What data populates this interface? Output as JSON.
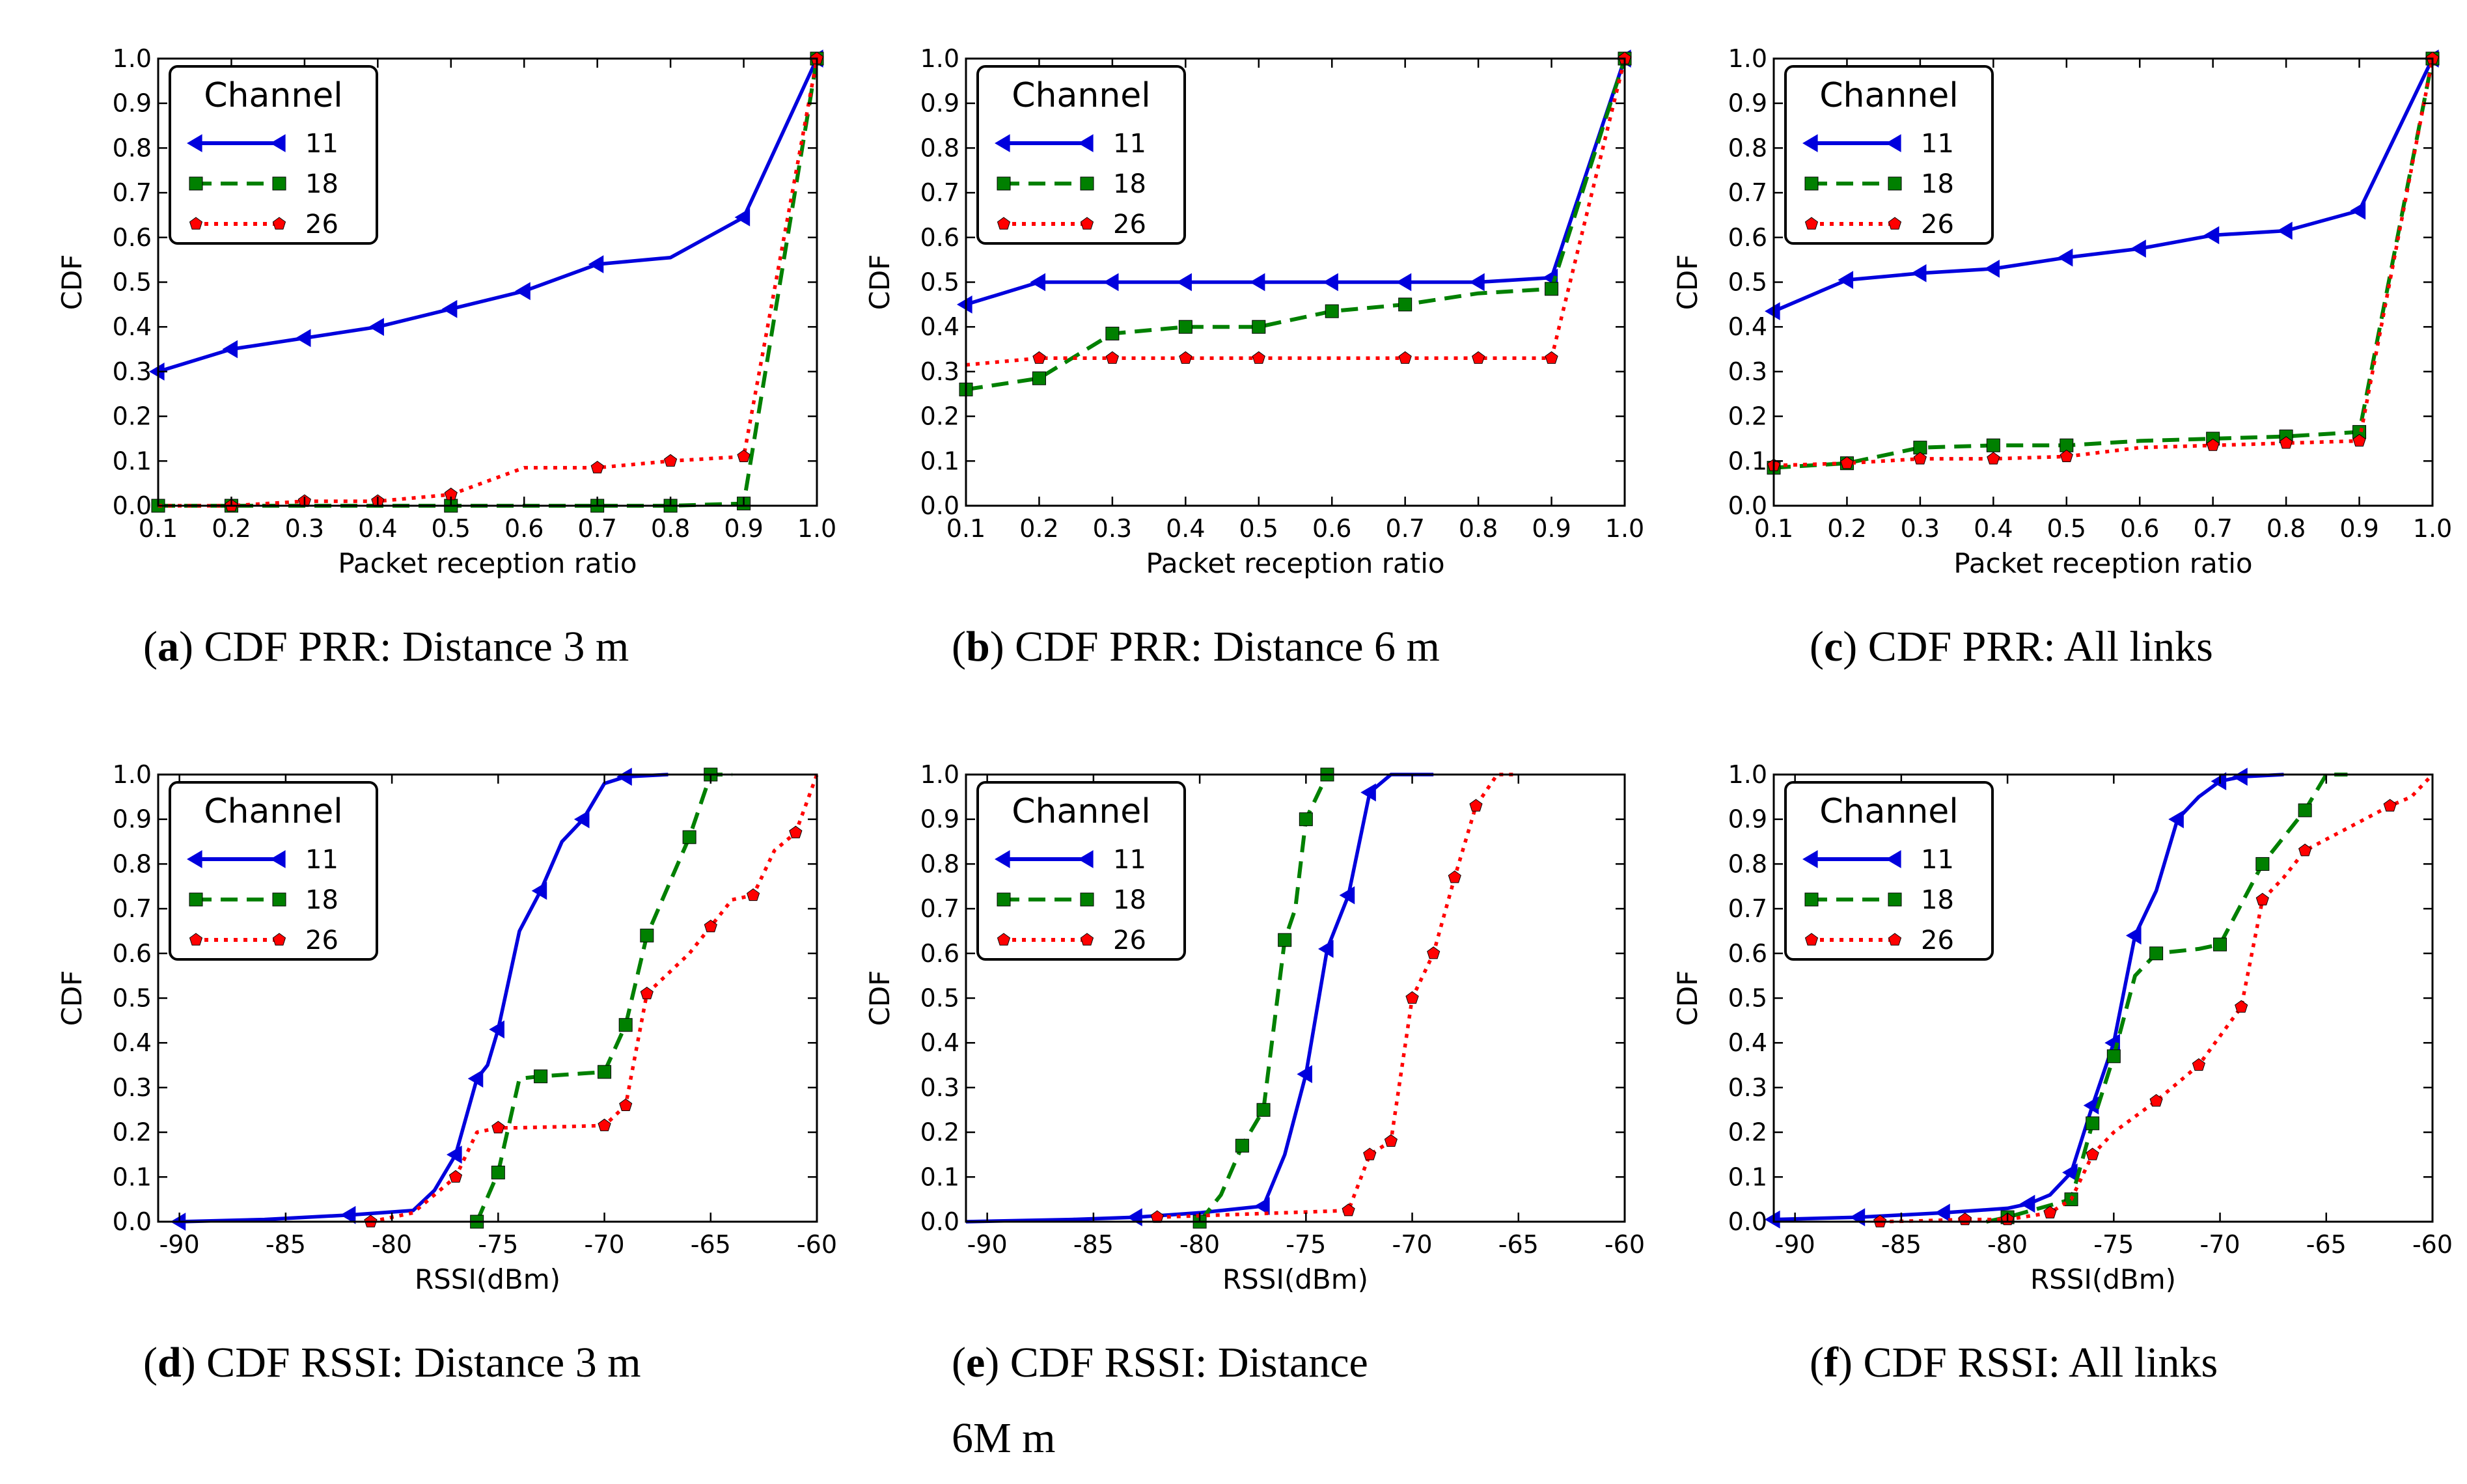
{
  "colors": {
    "ch11": "#0000dd",
    "ch18": "#008000",
    "ch26": "#ff0000"
  },
  "legend": {
    "title": "Channel",
    "entries": [
      {
        "label": "11",
        "marker": "triangle-left",
        "dash": "solid"
      },
      {
        "label": "18",
        "marker": "square",
        "dash": "dashed"
      },
      {
        "label": "26",
        "marker": "pentagon",
        "dash": "dotted"
      }
    ]
  },
  "chart_data": [
    {
      "id": "a",
      "type": "line",
      "title": "CDF PRR: Distance 3 m",
      "caption_letter": "a",
      "caption_text": " CDF PRR: Distance 3 m",
      "xlabel": "Packet reception ratio",
      "ylabel": "CDF",
      "xlim": [
        0.1,
        1.0
      ],
      "ylim": [
        0.0,
        1.0
      ],
      "xticks": [
        0.1,
        0.2,
        0.3,
        0.4,
        0.5,
        0.6,
        0.7,
        0.8,
        0.9,
        1.0
      ],
      "xtick_labels": [
        "0.1",
        "0.2",
        "0.3",
        "0.4",
        "0.5",
        "0.6",
        "0.7",
        "0.8",
        "0.9",
        "1.0"
      ],
      "yticks": [
        0.0,
        0.1,
        0.2,
        0.3,
        0.4,
        0.5,
        0.6,
        0.7,
        0.8,
        0.9,
        1.0
      ],
      "ytick_labels": [
        "0.0",
        "0.1",
        "0.2",
        "0.3",
        "0.4",
        "0.5",
        "0.6",
        "0.7",
        "0.8",
        "0.9",
        "1.0"
      ],
      "series": [
        {
          "name": "11",
          "x": [
            0.1,
            0.2,
            0.3,
            0.4,
            0.5,
            0.6,
            0.7,
            0.8,
            0.9,
            1.0
          ],
          "y": [
            0.3,
            0.35,
            0.375,
            0.4,
            0.44,
            0.48,
            0.54,
            0.555,
            0.645,
            1.0
          ],
          "markers": [
            0,
            1,
            2,
            3,
            4,
            5,
            6,
            8,
            9
          ]
        },
        {
          "name": "18",
          "x": [
            0.1,
            0.2,
            0.3,
            0.4,
            0.5,
            0.6,
            0.7,
            0.8,
            0.9,
            1.0
          ],
          "y": [
            0.0,
            0.0,
            0.0,
            0.0,
            0.0,
            0.0,
            0.0,
            0.0,
            0.005,
            1.0
          ],
          "markers": [
            0,
            1,
            4,
            6,
            7,
            8,
            9
          ]
        },
        {
          "name": "26",
          "x": [
            0.1,
            0.2,
            0.3,
            0.4,
            0.5,
            0.6,
            0.7,
            0.8,
            0.9,
            1.0
          ],
          "y": [
            0.0,
            0.0,
            0.01,
            0.01,
            0.025,
            0.085,
            0.085,
            0.1,
            0.11,
            1.0
          ],
          "markers": [
            1,
            2,
            3,
            4,
            6,
            7,
            8,
            9
          ]
        }
      ]
    },
    {
      "id": "b",
      "type": "line",
      "title": "CDF PRR: Distance 6 m",
      "caption_letter": "b",
      "caption_text": " CDF PRR: Distance 6 m",
      "xlabel": "Packet reception ratio",
      "ylabel": "CDF",
      "xlim": [
        0.1,
        1.0
      ],
      "ylim": [
        0.0,
        1.0
      ],
      "xticks": [
        0.1,
        0.2,
        0.3,
        0.4,
        0.5,
        0.6,
        0.7,
        0.8,
        0.9,
        1.0
      ],
      "xtick_labels": [
        "0.1",
        "0.2",
        "0.3",
        "0.4",
        "0.5",
        "0.6",
        "0.7",
        "0.8",
        "0.9",
        "1.0"
      ],
      "yticks": [
        0.0,
        0.1,
        0.2,
        0.3,
        0.4,
        0.5,
        0.6,
        0.7,
        0.8,
        0.9,
        1.0
      ],
      "ytick_labels": [
        "0.0",
        "0.1",
        "0.2",
        "0.3",
        "0.4",
        "0.5",
        "0.6",
        "0.7",
        "0.8",
        "0.9",
        "1.0"
      ],
      "series": [
        {
          "name": "11",
          "x": [
            0.1,
            0.2,
            0.3,
            0.4,
            0.5,
            0.6,
            0.7,
            0.8,
            0.9,
            1.0
          ],
          "y": [
            0.45,
            0.5,
            0.5,
            0.5,
            0.5,
            0.5,
            0.5,
            0.5,
            0.51,
            1.0
          ],
          "markers": [
            0,
            1,
            2,
            3,
            4,
            5,
            6,
            7,
            8,
            9
          ]
        },
        {
          "name": "18",
          "x": [
            0.1,
            0.2,
            0.3,
            0.4,
            0.5,
            0.6,
            0.7,
            0.8,
            0.9,
            1.0
          ],
          "y": [
            0.26,
            0.285,
            0.385,
            0.4,
            0.4,
            0.435,
            0.45,
            0.475,
            0.485,
            1.0
          ],
          "markers": [
            0,
            1,
            2,
            3,
            4,
            5,
            6,
            8,
            9
          ]
        },
        {
          "name": "26",
          "x": [
            0.1,
            0.2,
            0.3,
            0.4,
            0.5,
            0.6,
            0.7,
            0.8,
            0.9,
            1.0
          ],
          "y": [
            0.315,
            0.33,
            0.33,
            0.33,
            0.33,
            0.33,
            0.33,
            0.33,
            0.33,
            1.0
          ],
          "markers": [
            1,
            2,
            3,
            4,
            6,
            7,
            8,
            9
          ]
        }
      ]
    },
    {
      "id": "c",
      "type": "line",
      "title": "CDF PRR: All links",
      "caption_letter": "c",
      "caption_text": " CDF PRR: All links",
      "xlabel": "Packet reception ratio",
      "ylabel": "CDF",
      "xlim": [
        0.1,
        1.0
      ],
      "ylim": [
        0.0,
        1.0
      ],
      "xticks": [
        0.1,
        0.2,
        0.3,
        0.4,
        0.5,
        0.6,
        0.7,
        0.8,
        0.9,
        1.0
      ],
      "xtick_labels": [
        "0.1",
        "0.2",
        "0.3",
        "0.4",
        "0.5",
        "0.6",
        "0.7",
        "0.8",
        "0.9",
        "1.0"
      ],
      "yticks": [
        0.0,
        0.1,
        0.2,
        0.3,
        0.4,
        0.5,
        0.6,
        0.7,
        0.8,
        0.9,
        1.0
      ],
      "ytick_labels": [
        "0.0",
        "0.1",
        "0.2",
        "0.3",
        "0.4",
        "0.5",
        "0.6",
        "0.7",
        "0.8",
        "0.9",
        "1.0"
      ],
      "series": [
        {
          "name": "11",
          "x": [
            0.1,
            0.2,
            0.3,
            0.4,
            0.5,
            0.6,
            0.7,
            0.8,
            0.9,
            1.0
          ],
          "y": [
            0.435,
            0.505,
            0.52,
            0.53,
            0.555,
            0.575,
            0.605,
            0.615,
            0.66,
            1.0
          ],
          "markers": [
            0,
            1,
            2,
            3,
            4,
            5,
            6,
            7,
            8,
            9
          ]
        },
        {
          "name": "18",
          "x": [
            0.1,
            0.2,
            0.3,
            0.4,
            0.5,
            0.6,
            0.7,
            0.8,
            0.9,
            1.0
          ],
          "y": [
            0.085,
            0.095,
            0.13,
            0.135,
            0.135,
            0.145,
            0.15,
            0.155,
            0.165,
            1.0
          ],
          "markers": [
            0,
            1,
            2,
            3,
            4,
            6,
            7,
            8,
            9
          ]
        },
        {
          "name": "26",
          "x": [
            0.1,
            0.2,
            0.3,
            0.4,
            0.5,
            0.6,
            0.7,
            0.8,
            0.9,
            1.0
          ],
          "y": [
            0.09,
            0.095,
            0.105,
            0.105,
            0.11,
            0.13,
            0.135,
            0.14,
            0.145,
            1.0
          ],
          "markers": [
            0,
            1,
            2,
            3,
            4,
            6,
            7,
            8,
            9
          ]
        }
      ]
    },
    {
      "id": "d",
      "type": "line",
      "title": "CDF RSSI: Distance 3 m",
      "caption_letter": "d",
      "caption_text": " CDF RSSI: Distance 3 m",
      "xlabel": "RSSI(dBm)",
      "ylabel": "CDF",
      "xlim": [
        -91,
        -60
      ],
      "ylim": [
        0.0,
        1.0
      ],
      "xticks": [
        -90,
        -85,
        -80,
        -75,
        -70,
        -65,
        -60
      ],
      "xtick_labels": [
        "-90",
        "-85",
        "-80",
        "-75",
        "-70",
        "-65",
        "-60"
      ],
      "yticks": [
        0.0,
        0.1,
        0.2,
        0.3,
        0.4,
        0.5,
        0.6,
        0.7,
        0.8,
        0.9,
        1.0
      ],
      "ytick_labels": [
        "0.0",
        "0.1",
        "0.2",
        "0.3",
        "0.4",
        "0.5",
        "0.6",
        "0.7",
        "0.8",
        "0.9",
        "1.0"
      ],
      "series": [
        {
          "name": "11",
          "x": [
            -90,
            -86,
            -82,
            -79,
            -78,
            -77,
            -76,
            -75.5,
            -75,
            -74,
            -73,
            -72,
            -71,
            -70,
            -69,
            -67
          ],
          "y": [
            0.0,
            0.005,
            0.015,
            0.025,
            0.07,
            0.15,
            0.32,
            0.35,
            0.43,
            0.65,
            0.74,
            0.85,
            0.9,
            0.98,
            0.995,
            1.0
          ],
          "markers": [
            0,
            2,
            5,
            6,
            8,
            10,
            12,
            14
          ]
        },
        {
          "name": "18",
          "x": [
            -76,
            -75,
            -74,
            -73,
            -70,
            -69,
            -68,
            -66,
            -65,
            -64
          ],
          "y": [
            0.0,
            0.11,
            0.32,
            0.325,
            0.335,
            0.44,
            0.64,
            0.86,
            1.0,
            1.0
          ],
          "markers": [
            0,
            1,
            3,
            4,
            5,
            6,
            7,
            8
          ]
        },
        {
          "name": "26",
          "x": [
            -81,
            -79,
            -77,
            -76,
            -75,
            -74,
            -70,
            -69,
            -68,
            -66,
            -65,
            -64,
            -63,
            -62,
            -61,
            -60
          ],
          "y": [
            0.0,
            0.02,
            0.1,
            0.2,
            0.21,
            0.21,
            0.215,
            0.26,
            0.51,
            0.6,
            0.66,
            0.72,
            0.73,
            0.83,
            0.87,
            1.0
          ],
          "markers": [
            0,
            2,
            4,
            6,
            7,
            8,
            10,
            12,
            14
          ]
        }
      ]
    },
    {
      "id": "e",
      "type": "line",
      "title": "CDF RSSI: Distance 6M m",
      "caption_letter": "e",
      "caption_text": " CDF RSSI: Distance",
      "caption_line2": "6M m",
      "xlabel": "RSSI(dBm)",
      "ylabel": "CDF",
      "xlim": [
        -91,
        -60
      ],
      "ylim": [
        0.0,
        1.0
      ],
      "xticks": [
        -90,
        -85,
        -80,
        -75,
        -70,
        -65,
        -60
      ],
      "xtick_labels": [
        "-90",
        "-85",
        "-80",
        "-75",
        "-70",
        "-65",
        "-60"
      ],
      "yticks": [
        0.0,
        0.1,
        0.2,
        0.3,
        0.4,
        0.5,
        0.6,
        0.7,
        0.8,
        0.9,
        1.0
      ],
      "ytick_labels": [
        "0.0",
        "0.1",
        "0.2",
        "0.3",
        "0.4",
        "0.5",
        "0.6",
        "0.7",
        "0.8",
        "0.9",
        "1.0"
      ],
      "series": [
        {
          "name": "11",
          "x": [
            -91,
            -86,
            -83,
            -80,
            -77,
            -76,
            -75,
            -74,
            -73,
            -72,
            -71,
            -69
          ],
          "y": [
            0.0,
            0.005,
            0.01,
            0.02,
            0.035,
            0.15,
            0.33,
            0.61,
            0.73,
            0.96,
            1.0,
            1.0
          ],
          "markers": [
            2,
            4,
            6,
            7,
            8,
            9
          ]
        },
        {
          "name": "18",
          "x": [
            -80,
            -79,
            -78,
            -77,
            -76,
            -75.5,
            -75,
            -74
          ],
          "y": [
            0.0,
            0.06,
            0.17,
            0.25,
            0.63,
            0.7,
            0.9,
            1.0
          ],
          "markers": [
            0,
            2,
            3,
            4,
            6,
            7
          ]
        },
        {
          "name": "26",
          "x": [
            -82,
            -79,
            -73,
            -72,
            -71,
            -70,
            -69.5,
            -69,
            -68,
            -67,
            -66,
            -65
          ],
          "y": [
            0.01,
            0.015,
            0.025,
            0.15,
            0.18,
            0.5,
            0.55,
            0.6,
            0.77,
            0.93,
            1.0,
            1.0
          ],
          "markers": [
            0,
            2,
            3,
            4,
            5,
            7,
            8,
            9
          ]
        }
      ]
    },
    {
      "id": "f",
      "type": "line",
      "title": "CDF RSSI: All links",
      "caption_letter": "f",
      "caption_text": " CDF RSSI: All links",
      "xlabel": "RSSI(dBm)",
      "ylabel": "CDF",
      "xlim": [
        -91,
        -60
      ],
      "ylim": [
        0.0,
        1.0
      ],
      "xticks": [
        -90,
        -85,
        -80,
        -75,
        -70,
        -65,
        -60
      ],
      "xtick_labels": [
        "-90",
        "-85",
        "-80",
        "-75",
        "-70",
        "-65",
        "-60"
      ],
      "yticks": [
        0.0,
        0.1,
        0.2,
        0.3,
        0.4,
        0.5,
        0.6,
        0.7,
        0.8,
        0.9,
        1.0
      ],
      "ytick_labels": [
        "0.0",
        "0.1",
        "0.2",
        "0.3",
        "0.4",
        "0.5",
        "0.6",
        "0.7",
        "0.8",
        "0.9",
        "1.0"
      ],
      "series": [
        {
          "name": "11",
          "x": [
            -91,
            -87,
            -83,
            -80,
            -79,
            -78,
            -77,
            -76,
            -75,
            -74,
            -73,
            -72,
            -71,
            -70,
            -69,
            -67
          ],
          "y": [
            0.005,
            0.01,
            0.02,
            0.03,
            0.04,
            0.06,
            0.11,
            0.26,
            0.4,
            0.64,
            0.74,
            0.9,
            0.95,
            0.985,
            0.995,
            1.0
          ],
          "markers": [
            0,
            1,
            2,
            4,
            6,
            7,
            8,
            9,
            11,
            13,
            14
          ]
        },
        {
          "name": "18",
          "x": [
            -81,
            -80,
            -77,
            -76,
            -75,
            -74,
            -73,
            -71,
            -70,
            -68,
            -66,
            -65,
            -64
          ],
          "y": [
            0.0,
            0.01,
            0.05,
            0.22,
            0.37,
            0.55,
            0.6,
            0.61,
            0.62,
            0.8,
            0.92,
            1.0,
            1.0
          ],
          "markers": [
            1,
            2,
            3,
            4,
            6,
            8,
            9,
            10
          ]
        },
        {
          "name": "26",
          "x": [
            -86,
            -84,
            -82,
            -80,
            -78,
            -77,
            -76,
            -75,
            -73,
            -71,
            -69,
            -68,
            -67,
            -66,
            -64,
            -62,
            -61,
            -60
          ],
          "y": [
            0.0,
            0.002,
            0.005,
            0.005,
            0.02,
            0.05,
            0.15,
            0.2,
            0.27,
            0.35,
            0.48,
            0.72,
            0.77,
            0.83,
            0.88,
            0.93,
            0.95,
            1.0
          ],
          "markers": [
            0,
            2,
            3,
            4,
            6,
            8,
            9,
            10,
            11,
            13,
            15
          ]
        }
      ]
    }
  ]
}
